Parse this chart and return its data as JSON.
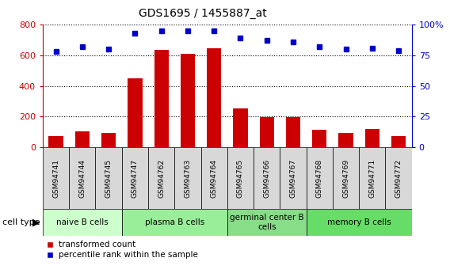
{
  "title": "GDS1695 / 1455887_at",
  "samples": [
    "GSM94741",
    "GSM94744",
    "GSM94745",
    "GSM94747",
    "GSM94762",
    "GSM94763",
    "GSM94764",
    "GSM94765",
    "GSM94766",
    "GSM94767",
    "GSM94768",
    "GSM94769",
    "GSM94771",
    "GSM94772"
  ],
  "bar_values": [
    75,
    105,
    95,
    450,
    635,
    610,
    645,
    255,
    195,
    195,
    115,
    95,
    120,
    75
  ],
  "dot_values": [
    78,
    82,
    80,
    93,
    95,
    95,
    95,
    89,
    87,
    86,
    82,
    80,
    81,
    79
  ],
  "ylim_left": [
    0,
    800
  ],
  "ylim_right": [
    0,
    100
  ],
  "yticks_left": [
    0,
    200,
    400,
    600,
    800
  ],
  "yticks_right": [
    0,
    25,
    50,
    75,
    100
  ],
  "yticklabels_right": [
    "0",
    "25",
    "50",
    "75",
    "100%"
  ],
  "bar_color": "#cc0000",
  "dot_color": "#0000cc",
  "cell_type_groups": [
    {
      "label": "naive B cells",
      "start": 0,
      "end": 3,
      "color": "#ccffcc"
    },
    {
      "label": "plasma B cells",
      "start": 3,
      "end": 7,
      "color": "#99ee99"
    },
    {
      "label": "germinal center B\ncells",
      "start": 7,
      "end": 10,
      "color": "#88dd88"
    },
    {
      "label": "memory B cells",
      "start": 10,
      "end": 14,
      "color": "#66dd66"
    }
  ],
  "cell_type_label": "cell type",
  "legend_bar_label": "transformed count",
  "legend_dot_label": "percentile rank within the sample",
  "left_axis_color": "#cc0000",
  "right_axis_color": "#0000cc",
  "sample_box_color": "#d8d8d8",
  "plot_bg": "#ffffff"
}
